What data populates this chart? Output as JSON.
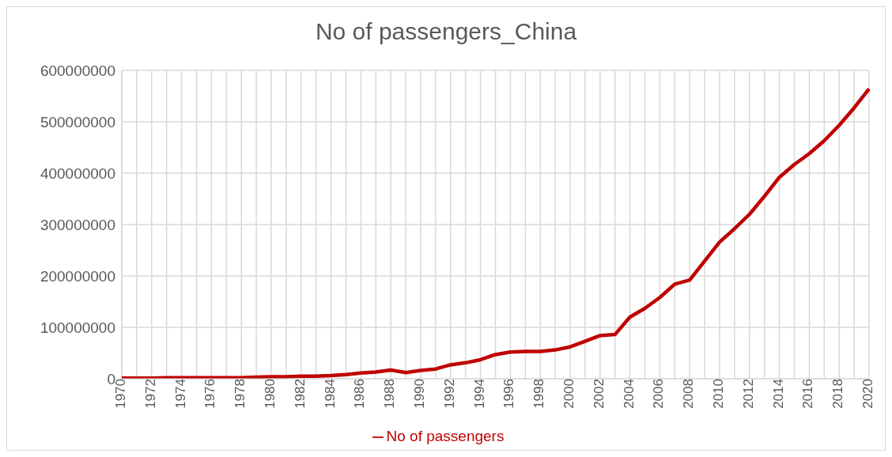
{
  "chart_data": {
    "type": "line",
    "title": "No of passengers_China",
    "categories": [
      "1970",
      null,
      "1972",
      null,
      "1974",
      null,
      "1976",
      null,
      "1978",
      null,
      "1980",
      null,
      "1982",
      null,
      "1984",
      null,
      "1986",
      null,
      "1988",
      null,
      "1990",
      null,
      "1992",
      null,
      "1994",
      null,
      "1996",
      null,
      "1998",
      null,
      "2000",
      null,
      "2002",
      null,
      "2004",
      null,
      "2006",
      null,
      "2008",
      null,
      "2010",
      null,
      "2012",
      null,
      "2014",
      null,
      "2016",
      null,
      "2018",
      null,
      "2020"
    ],
    "series": [
      {
        "name": "No of passengers",
        "color": "#c00000",
        "values": [
          1000000,
          1000000,
          1000000,
          2000000,
          2000000,
          2000000,
          2000000,
          2000000,
          2000000,
          3000000,
          4000000,
          4000000,
          5000000,
          5000000,
          6000000,
          8000000,
          11000000,
          13000000,
          17000000,
          12000000,
          16000000,
          19000000,
          27000000,
          31000000,
          37000000,
          47000000,
          52000000,
          53000000,
          53000000,
          56000000,
          62000000,
          73000000,
          84000000,
          86000000,
          120000000,
          137000000,
          158000000,
          184000000,
          192000000,
          229000000,
          266000000,
          292000000,
          320000000,
          355000000,
          392000000,
          417000000,
          438000000,
          463000000,
          493000000,
          527000000,
          564000000
        ]
      }
    ],
    "ylim": [
      0,
      600000000
    ],
    "yticks": [
      0,
      100000000,
      200000000,
      300000000,
      400000000,
      500000000,
      600000000
    ],
    "grid": true,
    "legend": "bottom",
    "marker": "none",
    "line_style": "solid"
  }
}
